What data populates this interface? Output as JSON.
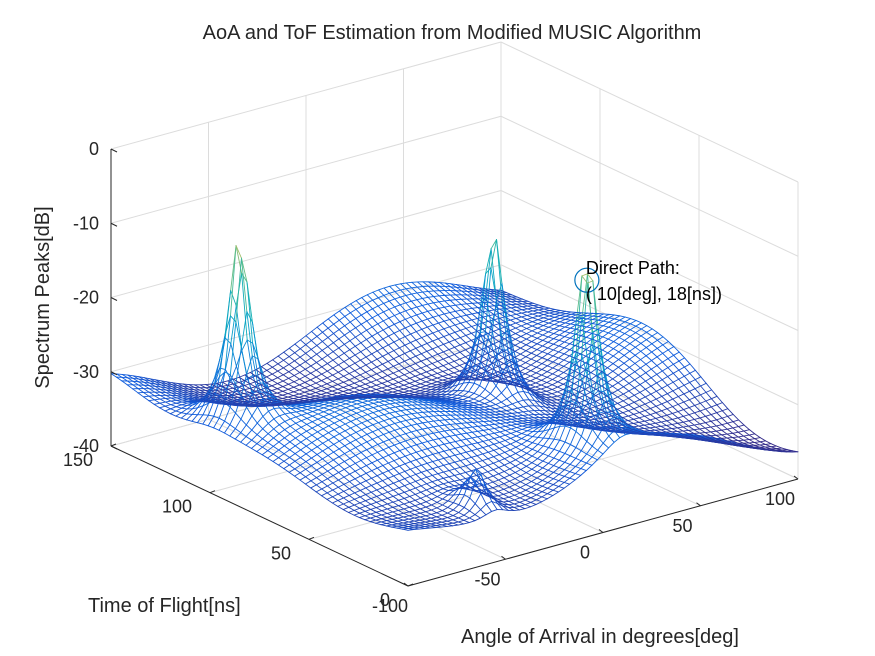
{
  "chart_data": {
    "type": "surface",
    "title": "AoA and ToF Estimation from Modified MUSIC Algorithm",
    "xlabel": "Angle of Arrival in degrees[deg]",
    "ylabel": "Time of Flight[ns]",
    "zlabel": "Spectrum Peaks[dB]",
    "xlim": [
      -100,
      100
    ],
    "ylim": [
      0,
      150
    ],
    "zlim": [
      -40,
      0
    ],
    "x_ticks": [
      "-100",
      "-50",
      "0",
      "50",
      "100"
    ],
    "y_ticks": [
      "0",
      "50",
      "100",
      "150"
    ],
    "z_ticks": [
      "0",
      "-10",
      "-20",
      "-30",
      "-40"
    ],
    "grid": true,
    "colormap": "parula",
    "surface_base_db": -33,
    "peaks": [
      {
        "aoa": 10,
        "tof": 18,
        "db": -6
      },
      {
        "aoa": -85,
        "tof": 100,
        "db": -7
      },
      {
        "aoa": 25,
        "tof": 80,
        "db": -9
      },
      {
        "aoa": -55,
        "tof": 10,
        "db": -27
      }
    ],
    "annotations": [
      {
        "label": "Direct Path:",
        "value": "( 10[deg], 18[ns])",
        "aoa": 10,
        "tof": 18,
        "db": -9
      }
    ]
  }
}
